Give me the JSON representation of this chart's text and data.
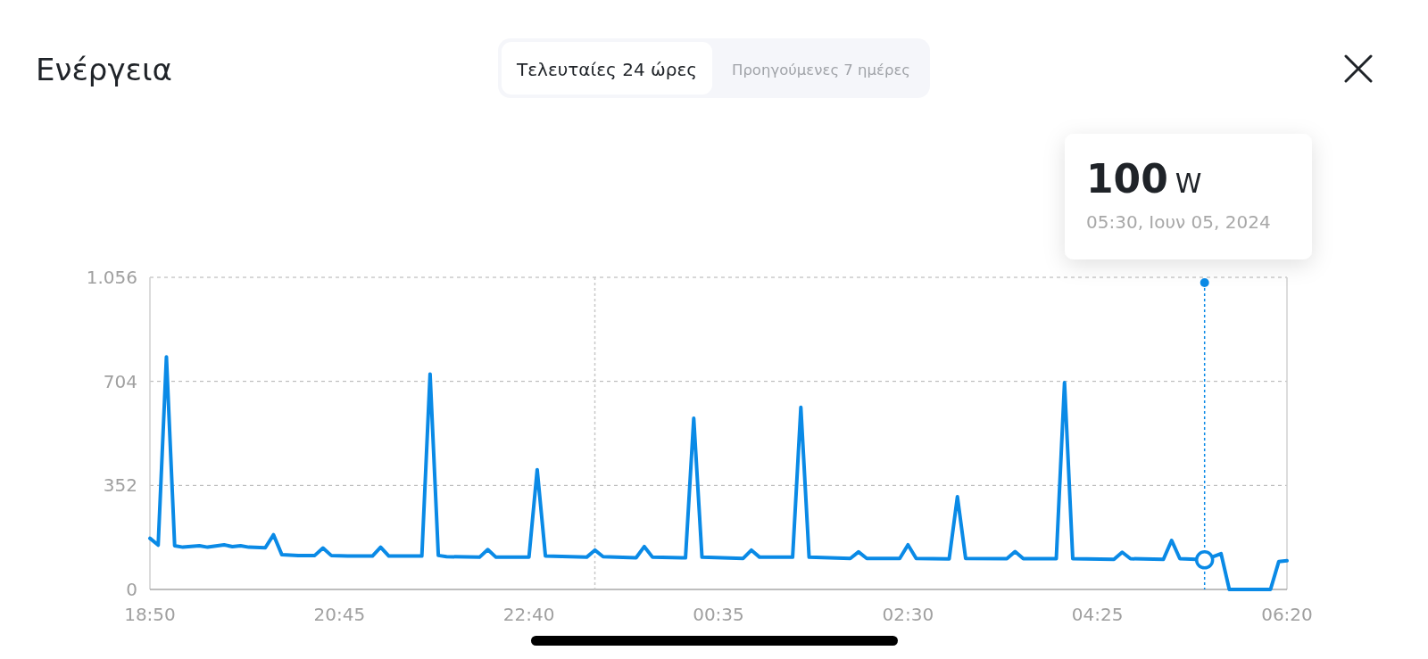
{
  "chart_data": {
    "type": "line",
    "title": "Ενέργεια",
    "x": [
      "2024-06-04T18:50",
      "2024-06-04T18:55",
      "2024-06-04T19:00",
      "2024-06-04T19:05",
      "2024-06-04T19:10",
      "2024-06-04T19:20",
      "2024-06-04T19:25",
      "2024-06-04T19:35",
      "2024-06-04T19:40",
      "2024-06-04T19:45",
      "2024-06-04T19:50",
      "2024-06-04T20:00",
      "2024-06-04T20:05",
      "2024-06-04T20:10",
      "2024-06-04T20:20",
      "2024-06-04T20:30",
      "2024-06-04T20:35",
      "2024-06-04T20:40",
      "2024-06-04T20:50",
      "2024-06-04T21:05",
      "2024-06-04T21:10",
      "2024-06-04T21:15",
      "2024-06-04T21:35",
      "2024-06-04T21:40",
      "2024-06-04T21:45",
      "2024-06-04T21:50",
      "2024-06-04T22:10",
      "2024-06-04T22:15",
      "2024-06-04T22:20",
      "2024-06-04T22:40",
      "2024-06-04T22:45",
      "2024-06-04T22:50",
      "2024-06-04T23:15",
      "2024-06-04T23:20",
      "2024-06-04T23:25",
      "2024-06-04T23:45",
      "2024-06-04T23:50",
      "2024-06-04T23:55",
      "2024-06-05T00:15",
      "2024-06-05T00:20",
      "2024-06-05T00:25",
      "2024-06-05T00:50",
      "2024-06-05T00:55",
      "2024-06-05T01:00",
      "2024-06-05T01:20",
      "2024-06-05T01:25",
      "2024-06-05T01:30",
      "2024-06-05T01:55",
      "2024-06-05T02:00",
      "2024-06-05T02:05",
      "2024-06-05T02:25",
      "2024-06-05T02:30",
      "2024-06-05T02:35",
      "2024-06-05T02:55",
      "2024-06-05T03:00",
      "2024-06-05T03:05",
      "2024-06-05T03:30",
      "2024-06-05T03:35",
      "2024-06-05T03:40",
      "2024-06-05T04:00",
      "2024-06-05T04:05",
      "2024-06-05T04:10",
      "2024-06-05T04:35",
      "2024-06-05T04:40",
      "2024-06-05T04:45",
      "2024-06-05T05:05",
      "2024-06-05T05:10",
      "2024-06-05T05:15",
      "2024-06-05T05:25",
      "2024-06-05T05:30",
      "2024-06-05T05:40",
      "2024-06-05T05:45",
      "2024-06-05T06:10",
      "2024-06-05T06:15",
      "2024-06-05T06:20"
    ],
    "series": [
      {
        "color": "#0a8ae6",
        "values": [
          173,
          150,
          787,
          148,
          143,
          148,
          143,
          151,
          145,
          148,
          143,
          141,
          185,
          118,
          115,
          115,
          140,
          115,
          113,
          113,
          143,
          113,
          113,
          729,
          115,
          111,
          109,
          135,
          109,
          109,
          405,
          113,
          109,
          133,
          111,
          107,
          145,
          109,
          107,
          579,
          109,
          105,
          133,
          109,
          109,
          616,
          109,
          105,
          127,
          105,
          105,
          151,
          105,
          103,
          314,
          105,
          104,
          128,
          104,
          104,
          700,
          104,
          102,
          126,
          104,
          102,
          166,
          104,
          102,
          100,
          121,
          0,
          0,
          94,
          97
        ]
      }
    ],
    "xlim": [
      "2024-06-04T18:50",
      "2024-06-05T06:20"
    ],
    "xticks": [
      {
        "value": "2024-06-04T18:50",
        "label": "18:50"
      },
      {
        "value": "2024-06-04T20:45",
        "label": "20:45"
      },
      {
        "value": "2024-06-04T22:40",
        "label": "22:40"
      },
      {
        "value": "2024-06-05T00:35",
        "label": "00:35"
      },
      {
        "value": "2024-06-05T02:30",
        "label": "02:30"
      },
      {
        "value": "2024-06-05T04:25",
        "label": "04:25"
      },
      {
        "value": "2024-06-05T06:20",
        "label": "06:20"
      }
    ],
    "ylim": [
      0,
      1056
    ],
    "yticks": [
      0,
      352,
      704,
      {
        "value": 1056,
        "label": "1.056"
      }
    ],
    "grid": "y",
    "marker": "none",
    "line_style": "solid",
    "ref_lines": [
      {
        "axis": "x",
        "value": "2024-06-04T23:20",
        "color": "#c8c8c8",
        "line_style": "dotted"
      },
      {
        "axis": "x",
        "value": "2024-06-05T05:30",
        "color": "#0a8ae6",
        "line_style": "dotted"
      }
    ],
    "annotations": [
      "100 W",
      "05:30, Ιουν 05, 2024",
      "Τελευταίες 24 ώρες",
      "Προηγούμενες 7 ημέρες"
    ]
  }
}
